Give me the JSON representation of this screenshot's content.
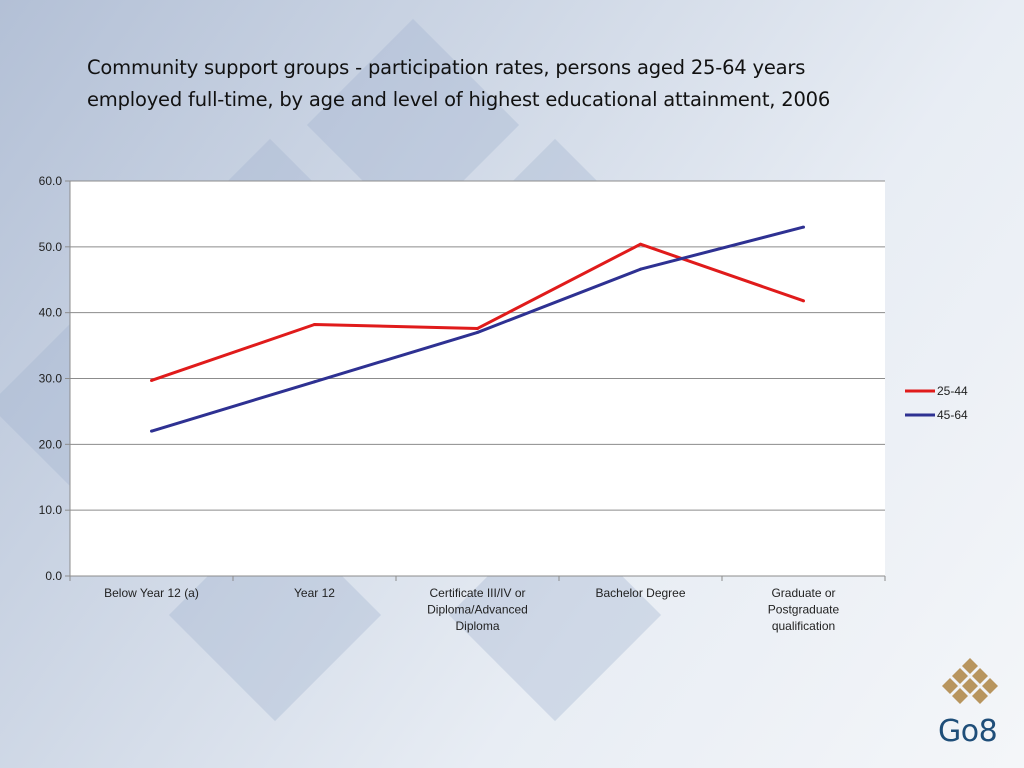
{
  "title_lines": [
    "Community support groups - participation rates, persons aged 25-64 years",
    "employed full-time, by age and level of highest educational attainment, 2006"
  ],
  "logo_text": "Go8",
  "colors": {
    "series_25_44": "#e01b1b",
    "series_45_64": "#2e3192",
    "logo_gold": "#b8955e",
    "logo_text": "#1f4e79"
  },
  "chart_data": {
    "type": "line",
    "title": "Community support groups - participation rates, persons aged 25-64 years employed full-time, by age and level of highest educational attainment, 2006",
    "categories": [
      [
        "Below Year 12 (a)"
      ],
      [
        "Year 12"
      ],
      [
        "Certificate III/IV or",
        "Diploma/Advanced",
        "Diploma"
      ],
      [
        "Bachelor Degree"
      ],
      [
        "Graduate or",
        "Postgraduate",
        "qualification"
      ]
    ],
    "series": [
      {
        "name": "25-44",
        "values": [
          29.7,
          38.2,
          37.6,
          50.4,
          41.8
        ]
      },
      {
        "name": "45-64",
        "values": [
          22.0,
          29.5,
          37.0,
          46.6,
          53.0
        ]
      }
    ],
    "ylim": [
      0,
      60
    ],
    "yticks": [
      "0.0",
      "10.0",
      "20.0",
      "30.0",
      "40.0",
      "50.0",
      "60.0"
    ],
    "grid": true,
    "legend": "right"
  }
}
